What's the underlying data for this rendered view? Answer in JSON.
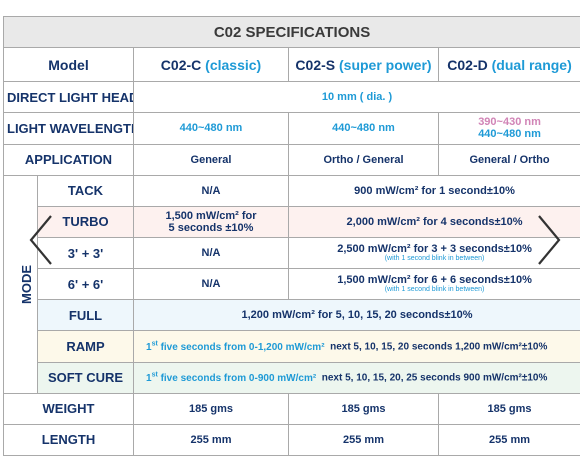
{
  "title": "C02 SPECIFICATIONS",
  "header": {
    "model_label": "Model",
    "models": [
      {
        "code": "C02-C",
        "variant": "(classic)"
      },
      {
        "code": "C02-S",
        "variant": "(super power)"
      },
      {
        "code": "C02-D",
        "variant": "(dual range)"
      }
    ]
  },
  "direct_light_head": {
    "label": "DIRECT LIGHT HEAD",
    "value": "10 mm ( dia. )"
  },
  "light_wavelength": {
    "label": "LIGHT WAVELENGTH",
    "values": [
      "440~480 nm",
      "440~480 nm"
    ],
    "dual": [
      "390~430 nm",
      "440~480 nm"
    ]
  },
  "application": {
    "label": "APPLICATION",
    "values": [
      "General",
      "Ortho / General",
      "General / Ortho"
    ]
  },
  "mode": {
    "label": "MODE",
    "rows": [
      {
        "label": "TACK",
        "classic": "N/A",
        "other": "900 mW/cm² for 1 second±10%"
      },
      {
        "label": "TURBO",
        "classic_line1": "1,500 mW/cm² for",
        "classic_line2": "5 seconds ±10%",
        "other": "2,000 mW/cm² for 4 seconds±10%"
      },
      {
        "label": "3' + 3'",
        "classic": "N/A",
        "other": "2,500 mW/cm² for 3 + 3 seconds±10%",
        "note": "(with 1 second blink in between)"
      },
      {
        "label": "6' + 6'",
        "classic": "N/A",
        "other": "1,500 mW/cm² for 6 + 6 seconds±10%",
        "note": "(with 1 second blink in between)"
      },
      {
        "label": "FULL",
        "all": "1,200 mW/cm² for 5, 10, 15, 20 seconds±10%"
      },
      {
        "label": "RAMP",
        "sup": "st",
        "first_a": "1",
        "first_b": " five seconds from 0-1,200 mW/cm²",
        "rest": "next 5, 10, 15, 20 seconds 1,200 mW/cm²±10%"
      },
      {
        "label": "SOFT CURE",
        "sup": "st",
        "first_a": "1",
        "first_b": " five seconds from 0-900 mW/cm²",
        "rest": "next 5, 10, 15, 20, 25 seconds 900 mW/cm²±10%"
      }
    ]
  },
  "weight": {
    "label": "WEIGHT",
    "values": [
      "185 gms",
      "185 gms",
      "185 gms"
    ]
  },
  "length": {
    "label": "LENGTH",
    "values": [
      "255 mm",
      "255 mm",
      "255 mm"
    ]
  },
  "icons": {
    "prev": "chevron-left-icon",
    "next": "chevron-right-icon"
  },
  "colors": {
    "navy": "#15336a",
    "accent_blue": "#1e9ad6",
    "pink": "#d184b6",
    "title_bg": "#e9e9e9"
  }
}
